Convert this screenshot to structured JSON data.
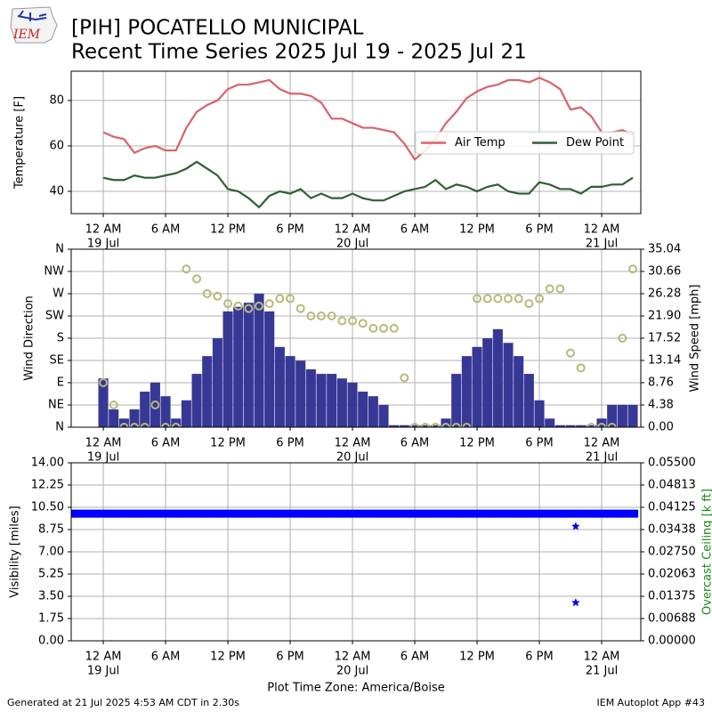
{
  "header": {
    "logo_text": "IEM",
    "title": "[PIH] POCATELLO MUNICIPAL",
    "subtitle": "Recent Time Series 2025 Jul 19 - 2025 Jul 21"
  },
  "chart_data": [
    {
      "type": "line",
      "ylabel": "Temperature [F]",
      "xlim": [
        -3.09,
        51.77
      ],
      "xticks": [
        {
          "value": 0,
          "label": "12 AM",
          "date": "19 Jul"
        },
        {
          "value": 6,
          "label": "6 AM"
        },
        {
          "value": 12,
          "label": "12 PM"
        },
        {
          "value": 18,
          "label": "6 PM"
        },
        {
          "value": 24,
          "label": "12 AM",
          "date": "20 Jul"
        },
        {
          "value": 30,
          "label": "6 AM"
        },
        {
          "value": 36,
          "label": "12 PM"
        },
        {
          "value": 42,
          "label": "6 PM"
        },
        {
          "value": 48,
          "label": "12 AM",
          "date": "21 Jul"
        }
      ],
      "ylim": [
        30.2,
        92.9
      ],
      "yticks": [
        40,
        60,
        80
      ],
      "grid": true,
      "legend": "upper right",
      "series": [
        {
          "name": "Air Temp",
          "color": "#d9626b",
          "x": [
            0,
            1,
            2,
            3,
            4,
            5,
            6,
            7,
            8,
            9,
            10,
            11,
            12,
            13,
            14,
            15,
            16,
            17,
            18,
            19,
            20,
            21,
            22,
            23,
            24,
            25,
            26,
            27,
            28,
            29,
            30,
            31,
            32,
            33,
            34,
            35,
            36,
            37,
            38,
            39,
            40,
            41,
            42,
            43,
            44,
            45,
            46,
            47,
            48,
            49,
            50,
            51
          ],
          "values": [
            66,
            64,
            63,
            57,
            59,
            60,
            58,
            58,
            68,
            75,
            78,
            80,
            85,
            87,
            87,
            88,
            89,
            85,
            83,
            83,
            82,
            79,
            72,
            72,
            70,
            68,
            68,
            67,
            66,
            61,
            54,
            58,
            63,
            70,
            75,
            81,
            84,
            86,
            87,
            89,
            89,
            88,
            90,
            88,
            85,
            76,
            77,
            73,
            66,
            66,
            67,
            65
          ]
        },
        {
          "name": "Dew Point",
          "color": "#2f5f33",
          "x": [
            0,
            1,
            2,
            3,
            4,
            5,
            6,
            7,
            8,
            9,
            10,
            11,
            12,
            13,
            14,
            15,
            16,
            17,
            18,
            19,
            20,
            21,
            22,
            23,
            24,
            25,
            26,
            27,
            28,
            29,
            30,
            31,
            32,
            33,
            34,
            35,
            36,
            37,
            38,
            39,
            40,
            41,
            42,
            43,
            44,
            45,
            46,
            47,
            48,
            49,
            50,
            51
          ],
          "values": [
            46,
            45,
            45,
            47,
            46,
            46,
            47,
            48,
            50,
            53,
            50,
            47,
            41,
            40,
            37,
            33,
            38,
            40,
            39,
            41,
            37,
            39,
            37,
            37,
            39,
            37,
            36,
            36,
            38,
            40,
            41,
            42,
            45,
            41,
            43,
            42,
            40,
            42,
            43,
            40,
            39,
            39,
            44,
            43,
            41,
            41,
            39,
            42,
            42,
            43,
            43,
            46
          ]
        }
      ]
    },
    {
      "type": "combo",
      "ylabel": "Wind Direction",
      "y2label": "Wind Speed [mph]",
      "xlim": [
        -3.09,
        51.77
      ],
      "xticks": [
        {
          "value": 0,
          "label": "12 AM",
          "date": "19 Jul"
        },
        {
          "value": 6,
          "label": "6 AM"
        },
        {
          "value": 12,
          "label": "12 PM"
        },
        {
          "value": 18,
          "label": "6 PM"
        },
        {
          "value": 24,
          "label": "12 AM",
          "date": "20 Jul"
        },
        {
          "value": 30,
          "label": "6 AM"
        },
        {
          "value": 36,
          "label": "12 PM"
        },
        {
          "value": 42,
          "label": "6 PM"
        },
        {
          "value": 48,
          "label": "12 AM",
          "date": "21 Jul"
        }
      ],
      "ylim": [
        0,
        360
      ],
      "yticks": [
        {
          "value": 0,
          "label": "N"
        },
        {
          "value": 45,
          "label": "NE"
        },
        {
          "value": 90,
          "label": "E"
        },
        {
          "value": 135,
          "label": "SE"
        },
        {
          "value": 180,
          "label": "S"
        },
        {
          "value": 225,
          "label": "SW"
        },
        {
          "value": 270,
          "label": "W"
        },
        {
          "value": 315,
          "label": "NW"
        },
        {
          "value": 360,
          "label": "N"
        }
      ],
      "y2lim": [
        0,
        35.04
      ],
      "y2ticks": [
        {
          "value": 0,
          "label": "0.00"
        },
        4.38,
        8.76,
        13.14,
        17.52,
        {
          "value": 21.9,
          "label": "21.90"
        },
        26.28,
        30.66,
        35.04
      ],
      "grid": true,
      "series": [
        {
          "kind": "bar",
          "axis": "y2",
          "color": "#373795",
          "x": [
            0,
            1,
            2,
            3,
            4,
            5,
            6,
            7,
            8,
            9,
            10,
            11,
            12,
            13,
            14,
            15,
            16,
            17,
            18,
            19,
            20,
            21,
            22,
            23,
            24,
            25,
            26,
            27,
            28,
            29,
            30,
            31,
            32,
            33,
            34,
            35,
            36,
            37,
            38,
            39,
            40,
            41,
            42,
            43,
            44,
            45,
            46,
            47,
            48,
            49,
            50,
            51
          ],
          "values": [
            9.6,
            3.5,
            1.7,
            3.5,
            7,
            8.8,
            6.1,
            1.7,
            5.3,
            10.5,
            14,
            17.5,
            22.8,
            23.7,
            24.5,
            26.3,
            22.8,
            15.8,
            14,
            13.1,
            11.4,
            10.5,
            10.5,
            9.6,
            8.8,
            7,
            6.1,
            4.4,
            0.4,
            0.4,
            0.4,
            0.4,
            0.4,
            1.7,
            10.5,
            14,
            15.8,
            17.5,
            19.3,
            16.6,
            14,
            10.5,
            5.3,
            1.7,
            0.4,
            0.4,
            0.4,
            0.4,
            1.7,
            4.4,
            4.4,
            4.4
          ]
        },
        {
          "kind": "scatter",
          "marker": "circle",
          "color": "#b8ba78",
          "x": [
            0,
            1,
            2,
            3,
            4,
            5,
            6,
            7,
            8,
            9,
            10,
            11,
            12,
            13,
            14,
            15,
            16,
            17,
            18,
            19,
            20,
            21,
            22,
            23,
            24,
            25,
            26,
            27,
            28,
            29,
            30,
            31,
            32,
            33,
            34,
            35,
            36,
            37,
            38,
            39,
            40,
            41,
            42,
            43,
            44,
            45,
            46,
            47,
            48,
            49,
            50,
            51
          ],
          "values": [
            90,
            45,
            0,
            0,
            0,
            45,
            0,
            0,
            320,
            300,
            270,
            265,
            250,
            245,
            240,
            245,
            250,
            260,
            260,
            240,
            225,
            225,
            225,
            215,
            215,
            210,
            200,
            200,
            200,
            100,
            0,
            0,
            0,
            0,
            0,
            0,
            260,
            260,
            260,
            260,
            260,
            250,
            260,
            280,
            280,
            150,
            120,
            0,
            0,
            0,
            180,
            320
          ]
        }
      ]
    },
    {
      "type": "scatter",
      "ylabel": "Visibility [miles]",
      "y2label": "Overcast Ceiling [k ft]",
      "xlabel": "Plot Time Zone: America/Boise",
      "xlim": [
        -3.09,
        51.77
      ],
      "xticks": [
        {
          "value": 0,
          "label": "12 AM",
          "date": "19 Jul"
        },
        {
          "value": 6,
          "label": "6 AM"
        },
        {
          "value": 12,
          "label": "12 PM"
        },
        {
          "value": 18,
          "label": "6 PM"
        },
        {
          "value": 24,
          "label": "12 AM",
          "date": "20 Jul"
        },
        {
          "value": 30,
          "label": "6 AM"
        },
        {
          "value": 36,
          "label": "12 PM"
        },
        {
          "value": 42,
          "label": "6 PM"
        },
        {
          "value": 48,
          "label": "12 AM",
          "date": "21 Jul"
        }
      ],
      "ylim": [
        0,
        14
      ],
      "yticks": [
        {
          "value": 0,
          "label": "0.00"
        },
        1.75,
        {
          "value": 3.5,
          "label": "3.50"
        },
        5.25,
        {
          "value": 7,
          "label": "7.00"
        },
        8.75,
        {
          "value": 10.5,
          "label": "10.50"
        },
        12.25,
        {
          "value": 14,
          "label": "14.00"
        }
      ],
      "y2lim": [
        0,
        0.055
      ],
      "y2ticks": [
        {
          "value": 0,
          "label": "0.00000"
        },
        0.00688,
        0.01375,
        0.02063,
        {
          "value": 0.0275,
          "label": "0.02750"
        },
        0.03438,
        0.04125,
        0.04813,
        {
          "value": 0.055,
          "label": "0.05500"
        }
      ],
      "y2color": "#1a8a1a",
      "grid": true,
      "series": [
        {
          "marker": "square",
          "color": "#0000ff",
          "x": [
            -3,
            -2,
            -1,
            0,
            1,
            2,
            3,
            4,
            5,
            6,
            7,
            8,
            9,
            10,
            11,
            12,
            13,
            14,
            15,
            16,
            17,
            18,
            19,
            20,
            21,
            22,
            23,
            24,
            25,
            26,
            27,
            28,
            29,
            30,
            31,
            32,
            33,
            34,
            35,
            36,
            37,
            38,
            39,
            40,
            41,
            42,
            43,
            44,
            45,
            46,
            47,
            48,
            49,
            50,
            51
          ],
          "values": [
            10,
            10,
            10,
            10,
            10,
            10,
            10,
            10,
            10,
            10,
            10,
            10,
            10,
            10,
            10,
            10,
            10,
            10,
            10,
            10,
            10,
            10,
            10,
            10,
            10,
            10,
            10,
            10,
            10,
            10,
            10,
            10,
            10,
            10,
            10,
            10,
            10,
            10,
            10,
            10,
            10,
            10,
            10,
            10,
            10,
            10,
            10,
            10,
            10,
            10,
            10,
            10,
            10,
            10,
            10
          ]
        },
        {
          "marker": "star",
          "color": "#0000ff",
          "x": [
            45.5,
            45.5
          ],
          "values": [
            9,
            3
          ]
        }
      ]
    }
  ],
  "footer": {
    "generated": "Generated at 21 Jul 2025 4:53 AM CDT in 2.30s",
    "app": "IEM Autoplot App #43"
  }
}
